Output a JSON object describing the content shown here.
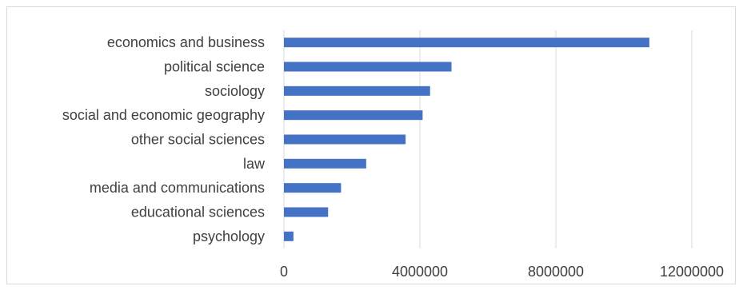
{
  "chart_data": {
    "type": "bar",
    "orientation": "horizontal",
    "title": "",
    "xlabel": "",
    "ylabel": "",
    "categories": [
      "economics and business",
      "political science",
      "sociology",
      "social and economic geography",
      "other social sciences",
      "law",
      "media and communications",
      "educational sciences",
      "psychology"
    ],
    "values": [
      10750000,
      4930000,
      4300000,
      4080000,
      3580000,
      2420000,
      1680000,
      1300000,
      280000
    ],
    "xlim": [
      0,
      12000000
    ],
    "x_ticks": [
      "0",
      "4000000",
      "8000000",
      "12000000"
    ],
    "grid": true,
    "legend": "none",
    "bar_color": "#4472c4",
    "grid_color": "#d9d9d9"
  }
}
